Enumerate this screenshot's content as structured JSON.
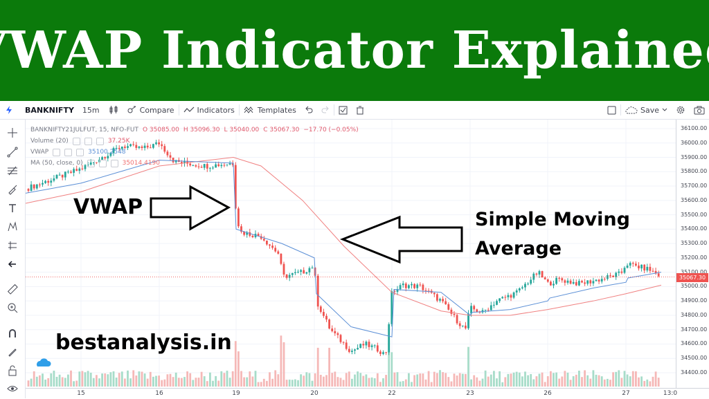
{
  "banner": {
    "title": "VWAP Indicator Explained",
    "color": "#0b7a0b"
  },
  "toolbar": {
    "symbol": "BANKNIFTY",
    "interval": "15m",
    "compare_label": "Compare",
    "indicators_label": "Indicators",
    "templates_label": "Templates",
    "save_label": "Save"
  },
  "legend": {
    "title": "BANKNIFTY21JULFUT, 15, NFO-FUT",
    "open": "O 35085.00",
    "high": "H 35096.30",
    "low": "L 35040.00",
    "close": "C 35067.30",
    "change": "−17.70 (−0.05%)",
    "volume_label": "Volume (20)",
    "volume_value": "37.25K",
    "vwap_label": "VWAP",
    "vwap_value": "35100.2548",
    "ma_label": "MA (50, close, 0)",
    "ma_value": "35014.4190"
  },
  "price_axis": {
    "labels": [
      "36100.00",
      "36000.00",
      "35900.00",
      "35800.00",
      "35700.00",
      "35600.00",
      "35500.00",
      "35400.00",
      "35300.00",
      "35200.00",
      "35100.00",
      "35000.00",
      "34900.00",
      "34800.00",
      "34700.00",
      "34600.00",
      "34500.00",
      "34400.00"
    ],
    "current_price": "35067.30"
  },
  "time_axis": {
    "labels": [
      "15",
      "16",
      "19",
      "20",
      "22",
      "23",
      "26",
      "27",
      "13:0"
    ]
  },
  "annotations": {
    "vwap": "VWAP",
    "sma_line1": "Simple Moving",
    "sma_line2": "Average",
    "site": "bestanalysis.in"
  },
  "colors": {
    "up": "#26a69a",
    "down": "#ef5350",
    "vwap": "#5b8fd6",
    "ma": "#f08080"
  },
  "chart_data": {
    "type": "line",
    "title": "BANKNIFTY21JULFUT, 15, NFO-FUT",
    "xlabel": "",
    "ylabel": "",
    "ylim": [
      34400,
      36100
    ],
    "x": [
      "15",
      "16",
      "19",
      "20",
      "22",
      "23",
      "26",
      "27"
    ],
    "series": [
      {
        "name": "VWAP",
        "values": [
          35750,
          35950,
          35380,
          35100,
          35020,
          34760,
          34920,
          35050
        ]
      },
      {
        "name": "MA (50, close, 0)",
        "values": [
          35650,
          35850,
          35900,
          35400,
          34950,
          34820,
          34860,
          35010
        ]
      }
    ]
  }
}
